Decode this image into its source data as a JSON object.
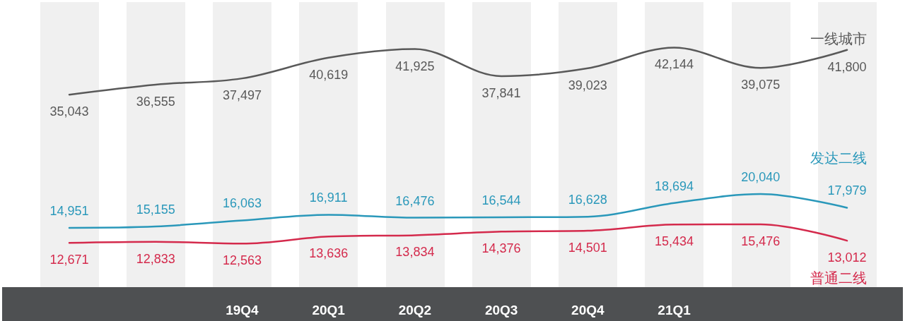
{
  "chart_data": {
    "type": "line",
    "categories": [
      null,
      null,
      "19Q4",
      "20Q1",
      "20Q2",
      "20Q3",
      "20Q4",
      "21Q1",
      null,
      null
    ],
    "series": [
      {
        "name": "一线城市",
        "color": "#595959",
        "values": [
          35043,
          36555,
          37497,
          40619,
          41925,
          37841,
          39023,
          42144,
          39075,
          41800
        ],
        "value_labels": [
          "35,043",
          "36,555",
          "37,497",
          "40,619",
          "41,925",
          "37,841",
          "39,023",
          "42,144",
          "39,075",
          "41,800"
        ]
      },
      {
        "name": "发达二线",
        "color": "#2a98ba",
        "values": [
          14951,
          15155,
          16063,
          16911,
          16476,
          16544,
          16628,
          18694,
          20040,
          17979
        ],
        "value_labels": [
          "14,951",
          "15,155",
          "16,063",
          "16,911",
          "16,476",
          "16,544",
          "16,628",
          "18,694",
          "20,040",
          "17,979"
        ]
      },
      {
        "name": "普通二线",
        "color": "#d42a4c",
        "values": [
          12671,
          12833,
          12563,
          13636,
          13834,
          14376,
          14501,
          15434,
          15476,
          13012
        ],
        "value_labels": [
          "12,671",
          "12,833",
          "12,563",
          "13,636",
          "13,834",
          "14,376",
          "14,501",
          "15,434",
          "15,476",
          "13,012"
        ]
      }
    ],
    "marker": "none",
    "grid": "x",
    "tick_labels": "x"
  }
}
